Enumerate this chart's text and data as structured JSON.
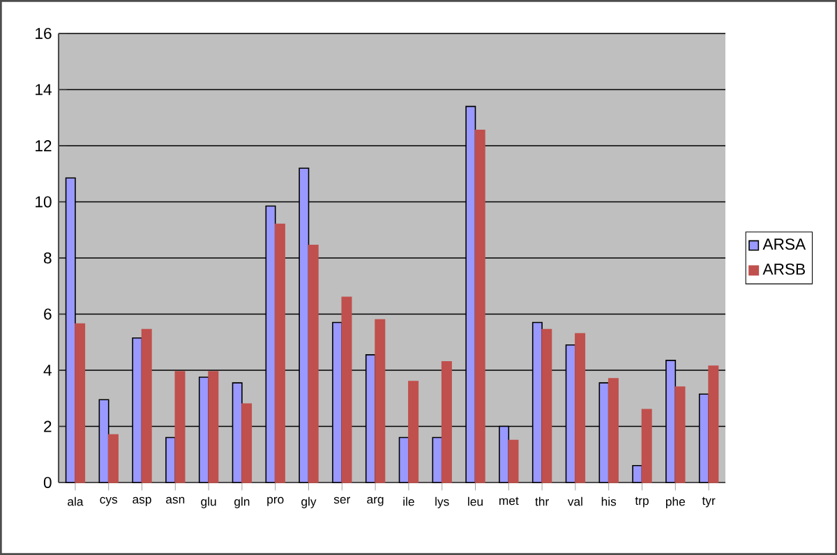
{
  "chart_data": {
    "type": "bar",
    "categories": [
      "ala",
      "cys",
      "asp",
      "asn",
      "glu",
      "gln",
      "pro",
      "gly",
      "ser",
      "arg",
      "ile",
      "lys",
      "leu",
      "met",
      "thr",
      "val",
      "his",
      "trp",
      "phe",
      "tyr"
    ],
    "series": [
      {
        "name": "ARSA",
        "color": "#9999ff",
        "values": [
          10.85,
          2.95,
          5.15,
          1.6,
          3.75,
          3.55,
          9.85,
          11.2,
          5.7,
          4.55,
          1.6,
          1.6,
          13.4,
          2.0,
          5.7,
          4.9,
          3.55,
          0.6,
          4.35,
          3.15
        ]
      },
      {
        "name": "ARSB",
        "color": "#c0504d",
        "values": [
          5.65,
          1.7,
          5.45,
          3.95,
          3.95,
          2.8,
          9.2,
          8.45,
          6.6,
          5.8,
          3.6,
          4.3,
          12.55,
          1.5,
          5.45,
          5.3,
          3.7,
          2.6,
          3.4,
          4.15
        ]
      }
    ],
    "ylim": [
      0,
      16
    ],
    "yticks": [
      0,
      2,
      4,
      6,
      8,
      10,
      12,
      14,
      16
    ],
    "grid": "y",
    "legend": "right"
  }
}
